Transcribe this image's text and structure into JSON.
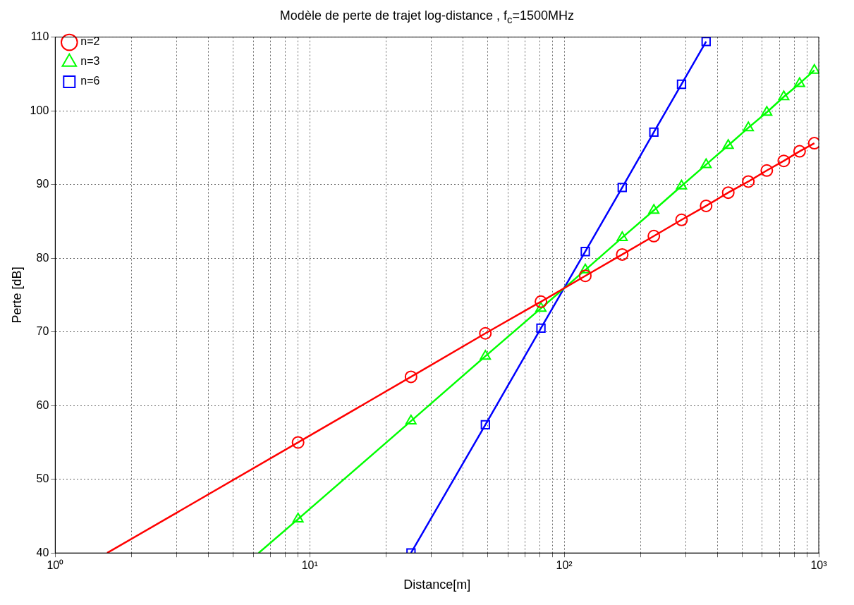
{
  "chart_data": {
    "type": "line",
    "title": "Modèle de perte de trajet log-distance , f$_{c}$=1500MHz",
    "xlabel": "Distance[m]",
    "ylabel": "Perte [dB]",
    "log": "x",
    "grid": true,
    "legend": "top left",
    "xlim": [
      1,
      1000
    ],
    "ylim": [
      40,
      110
    ],
    "xticks": [
      {
        "value": 1,
        "label": "10⁰"
      },
      {
        "value": 2,
        "label": null
      },
      {
        "value": 3,
        "label": null
      },
      {
        "value": 4,
        "label": null
      },
      {
        "value": 5,
        "label": null
      },
      {
        "value": 6,
        "label": null
      },
      {
        "value": 7,
        "label": null
      },
      {
        "value": 8,
        "label": null
      },
      {
        "value": 9,
        "label": null
      },
      {
        "value": 10,
        "label": "10¹"
      },
      {
        "value": 20,
        "label": null
      },
      {
        "value": 30,
        "label": null
      },
      {
        "value": 40,
        "label": null
      },
      {
        "value": 50,
        "label": null
      },
      {
        "value": 60,
        "label": null
      },
      {
        "value": 70,
        "label": null
      },
      {
        "value": 80,
        "label": null
      },
      {
        "value": 90,
        "label": null
      },
      {
        "value": 100,
        "label": "10²"
      },
      {
        "value": 200,
        "label": null
      },
      {
        "value": 300,
        "label": null
      },
      {
        "value": 400,
        "label": null
      },
      {
        "value": 500,
        "label": null
      },
      {
        "value": 600,
        "label": null
      },
      {
        "value": 700,
        "label": null
      },
      {
        "value": 800,
        "label": null
      },
      {
        "value": 900,
        "label": null
      },
      {
        "value": 1000,
        "label": "10³"
      }
    ],
    "yticks": [
      40,
      50,
      60,
      70,
      80,
      90,
      100,
      110
    ],
    "series": [
      {
        "name": "n=2",
        "color": "#ff0000",
        "marker": "circle",
        "x": [
          9,
          25,
          49,
          81,
          121,
          169,
          225,
          289,
          361,
          441,
          529,
          625,
          729,
          841,
          961
        ],
        "values": [
          55.0,
          63.9,
          69.8,
          74.1,
          77.6,
          80.5,
          83.0,
          85.2,
          87.1,
          88.9,
          90.4,
          91.9,
          93.2,
          94.5,
          95.6
        ]
      },
      {
        "name": "n=3",
        "color": "#00ff00",
        "marker": "triangle",
        "x": [
          9,
          25,
          49,
          81,
          121,
          169,
          225,
          289,
          361,
          441,
          529,
          625,
          729,
          841,
          961
        ],
        "values": [
          44.6,
          57.9,
          66.7,
          73.2,
          78.4,
          82.8,
          86.5,
          89.8,
          92.7,
          95.3,
          97.7,
          99.8,
          101.9,
          103.7,
          105.5
        ]
      },
      {
        "name": "n=6",
        "color": "#0000ff",
        "marker": "square",
        "x": [
          25,
          49,
          81,
          121,
          169,
          225,
          289,
          361
        ],
        "values": [
          40,
          57.4,
          70.5,
          80.9,
          89.6,
          97.1,
          103.6,
          109.4
        ]
      },
      {
        "color": "#ff0000",
        "marker": "none",
        "x": [
          1.6,
          9
        ],
        "values": [
          40,
          55.0
        ]
      },
      {
        "color": "#00ff00",
        "marker": "none",
        "x": [
          6.3,
          9
        ],
        "values": [
          40,
          44.6
        ]
      }
    ]
  }
}
